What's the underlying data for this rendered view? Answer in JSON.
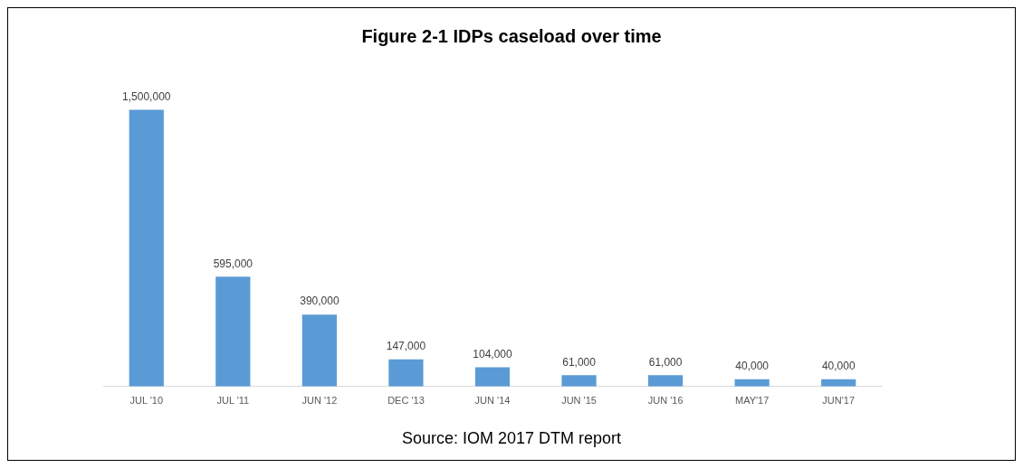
{
  "chart_data": {
    "type": "bar",
    "title": "Figure 2-1 IDPs caseload over time",
    "categories": [
      "JUL '10",
      "JUL '11",
      "JUN '12",
      "DEC '13",
      "JUN '14",
      "JUN '15",
      "JUN '16",
      "MAY'17",
      "JUN'17"
    ],
    "values": [
      1500000,
      595000,
      390000,
      147000,
      104000,
      61000,
      61000,
      40000,
      40000
    ],
    "value_labels": [
      "1,500,000",
      "595,000",
      "390,000",
      "147,000",
      "104,000",
      "61,000",
      "61,000",
      "40,000",
      "40,000"
    ],
    "color": "#5b9bd5",
    "grid": false,
    "legend": false,
    "annotations": [
      "Source: IOM 2017 DTM report"
    ]
  }
}
